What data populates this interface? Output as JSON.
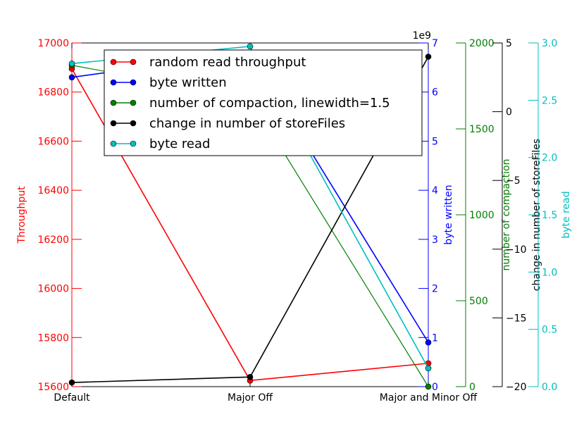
{
  "chart_data": {
    "type": "line",
    "categories": [
      "Default",
      "Major Off",
      "Major and Minor Off"
    ],
    "series": [
      {
        "name": "random read throughput",
        "axis": "throughput",
        "color": "#ff0000",
        "values": [
          16895,
          15625,
          15695
        ]
      },
      {
        "name": "byte written",
        "axis": "byte_written",
        "color": "#0000ff",
        "values": [
          6300000000.0,
          6800000000.0,
          900000000.0
        ]
      },
      {
        "name": "number of compaction, linewidth=1.5",
        "axis": "compaction",
        "color": "#008000",
        "values": [
          1870,
          1680,
          0
        ]
      },
      {
        "name": "change in number of storeFiles",
        "axis": "storefiles",
        "color": "#000000",
        "values": [
          -19.7,
          -19.3,
          4.0
        ]
      },
      {
        "name": "byte read",
        "axis": "byte_read",
        "color": "#00bfbf",
        "values": [
          2.82,
          2.97,
          0.16
        ]
      }
    ],
    "axes": [
      {
        "id": "throughput",
        "label": "Throughput",
        "color": "#ff0000",
        "range": [
          15600,
          17000
        ],
        "ticks": [
          15600,
          15800,
          16000,
          16200,
          16400,
          16600,
          16800,
          17000
        ],
        "tick_labels": [
          "15600",
          "15800",
          "16000",
          "16200",
          "16400",
          "16600",
          "16800",
          "17000"
        ]
      },
      {
        "id": "byte_written",
        "label": "byte written",
        "color": "#0000ff",
        "range": [
          0,
          7000000000.0
        ],
        "ticks": [
          0,
          1000000000.0,
          2000000000.0,
          3000000000.0,
          4000000000.0,
          5000000000.0,
          6000000000.0,
          7000000000.0
        ],
        "tick_labels": [
          "0",
          "1",
          "2",
          "3",
          "4",
          "5",
          "6",
          "7"
        ],
        "offset_text": "1e9"
      },
      {
        "id": "compaction",
        "label": "number of compaction",
        "color": "#008000",
        "range": [
          0,
          2000
        ],
        "ticks": [
          0,
          500,
          1000,
          1500,
          2000
        ],
        "tick_labels": [
          "0",
          "500",
          "1000",
          "1500",
          "2000"
        ]
      },
      {
        "id": "storefiles",
        "label": "change in number of storeFiles",
        "color": "#000000",
        "range": [
          -20,
          5
        ],
        "ticks": [
          -20,
          -15,
          -10,
          -5,
          0,
          5
        ],
        "tick_labels": [
          "−20",
          "−15",
          "−10",
          "−5",
          "0",
          "5"
        ]
      },
      {
        "id": "byte_read",
        "label": "byte read",
        "color": "#00bfbf",
        "range": [
          0,
          3
        ],
        "ticks": [
          0,
          0.5,
          1,
          1.5,
          2,
          2.5,
          3
        ],
        "tick_labels": [
          "0.0",
          "0.5",
          "1.0",
          "1.5",
          "2.0",
          "2.5",
          "3.0"
        ]
      }
    ],
    "grid": false,
    "legend_position": "top"
  }
}
